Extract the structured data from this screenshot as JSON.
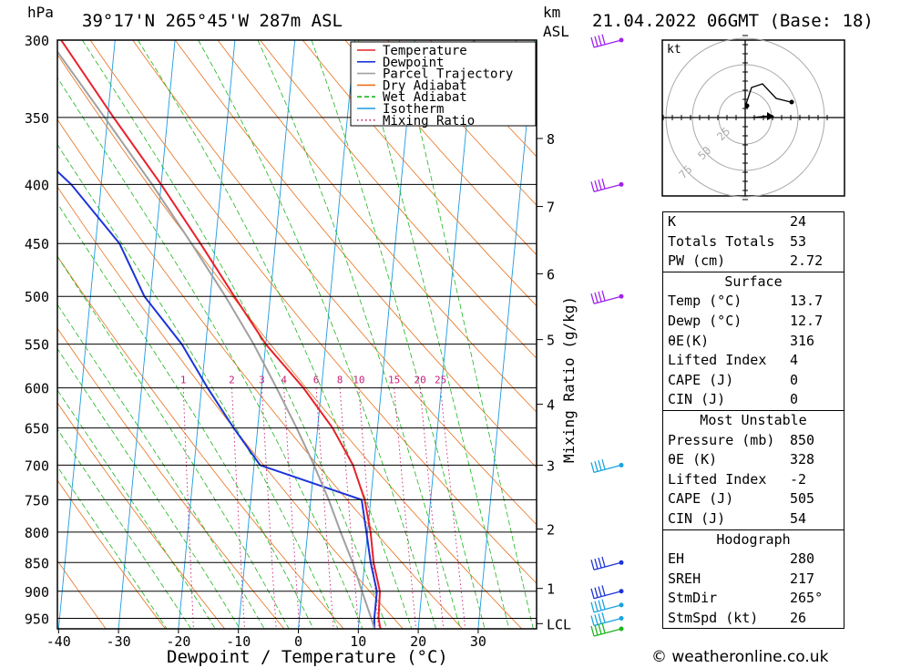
{
  "header": {
    "hpa_label": "hPa",
    "location": "39°17'N  265°45'W  287m  ASL",
    "km_label": "km",
    "asl_label": "ASL",
    "datetime": "21.04.2022  06GMT  (Base: 18)"
  },
  "legend": [
    {
      "label": "Temperature",
      "color": "#e8212b",
      "style": "solid"
    },
    {
      "label": "Dewpoint",
      "color": "#1d35d8",
      "style": "solid"
    },
    {
      "label": "Parcel Trajectory",
      "color": "#a0a0a0",
      "style": "solid"
    },
    {
      "label": "Dry Adiabat",
      "color": "#e8701a",
      "style": "solid"
    },
    {
      "label": "Wet Adiabat",
      "color": "#1db51d",
      "style": "dashed"
    },
    {
      "label": "Isotherm",
      "color": "#1d9be0",
      "style": "solid"
    },
    {
      "label": "Mixing Ratio",
      "color": "#c81e78",
      "style": "dotted"
    }
  ],
  "chart_data": {
    "type": "line",
    "xlabel": "Dewpoint / Temperature (°C)",
    "ylabel": "hPa",
    "right_axis_label": "km ASL",
    "mixing_ratio_axis_label": "Mixing Ratio (g/kg)",
    "pressure_ticks": [
      300,
      350,
      400,
      450,
      500,
      550,
      600,
      650,
      700,
      750,
      800,
      850,
      900,
      950
    ],
    "temperature_ticks": [
      -40,
      -30,
      -20,
      -10,
      0,
      10,
      20,
      30
    ],
    "km_ticks": [
      {
        "label": "8",
        "p": 365
      },
      {
        "label": "7",
        "p": 418
      },
      {
        "label": "6",
        "p": 478
      },
      {
        "label": "5",
        "p": 545
      },
      {
        "label": "4",
        "p": 620
      },
      {
        "label": "3",
        "p": 700
      },
      {
        "label": "2",
        "p": 795
      },
      {
        "label": "1",
        "p": 895
      },
      {
        "label": "LCL",
        "p": 960
      }
    ],
    "mixing_ratio_labels": [
      "1",
      "2",
      "3",
      "4",
      "6",
      "8",
      "10",
      "15",
      "20",
      "25"
    ],
    "mixing_ratio_values": [
      1,
      2,
      3,
      4,
      6,
      8,
      10,
      15,
      20,
      25
    ],
    "series": [
      {
        "name": "Temperature",
        "color": "#e8212b",
        "points": [
          [
            970,
            13.7
          ],
          [
            950,
            13.2
          ],
          [
            900,
            13
          ],
          [
            850,
            11.5
          ],
          [
            800,
            10.5
          ],
          [
            750,
            9
          ],
          [
            700,
            6.5
          ],
          [
            650,
            2.5
          ],
          [
            600,
            -3
          ],
          [
            550,
            -10
          ],
          [
            500,
            -16
          ],
          [
            450,
            -22.5
          ],
          [
            400,
            -30
          ],
          [
            350,
            -39
          ],
          [
            300,
            -49
          ]
        ]
      },
      {
        "name": "Dewpoint",
        "color": "#1d35d8",
        "points": [
          [
            970,
            12.7
          ],
          [
            950,
            12.5
          ],
          [
            900,
            12.5
          ],
          [
            850,
            11
          ],
          [
            800,
            9.8
          ],
          [
            750,
            8.5
          ],
          [
            700,
            -9
          ],
          [
            650,
            -14
          ],
          [
            600,
            -19
          ],
          [
            550,
            -24
          ],
          [
            500,
            -31
          ],
          [
            450,
            -36
          ],
          [
            400,
            -45
          ],
          [
            350,
            -58
          ],
          [
            300,
            -67
          ]
        ]
      },
      {
        "name": "Parcel Trajectory",
        "color": "#a0a0a0",
        "points": [
          [
            970,
            12.7
          ],
          [
            950,
            12
          ],
          [
            900,
            10
          ],
          [
            850,
            8
          ],
          [
            800,
            5.5
          ],
          [
            750,
            3
          ],
          [
            700,
            0
          ],
          [
            650,
            -3.5
          ],
          [
            600,
            -7.5
          ],
          [
            550,
            -12
          ],
          [
            500,
            -17.5
          ],
          [
            450,
            -24
          ],
          [
            400,
            -31.5
          ],
          [
            350,
            -40.5
          ],
          [
            300,
            -51
          ]
        ]
      }
    ],
    "wind_barbs": [
      {
        "p": 300,
        "color": "#a020f0"
      },
      {
        "p": 400,
        "color": "#a020f0"
      },
      {
        "p": 500,
        "color": "#a020f0"
      },
      {
        "p": 700,
        "color": "#19a3e0"
      },
      {
        "p": 850,
        "color": "#1d35d8"
      },
      {
        "p": 900,
        "color": "#1d35d8"
      },
      {
        "p": 925,
        "color": "#19a3e0"
      },
      {
        "p": 950,
        "color": "#19a3e0"
      },
      {
        "p": 970,
        "color": "#1db51d"
      }
    ]
  },
  "hodograph": {
    "unit_label": "kt",
    "ring_labels": [
      "25",
      "50",
      "75"
    ]
  },
  "stats": {
    "indices": [
      {
        "label": "K",
        "value": "24"
      },
      {
        "label": "Totals Totals",
        "value": "53"
      },
      {
        "label": "PW (cm)",
        "value": "2.72"
      }
    ],
    "surface": {
      "title": "Surface",
      "rows": [
        {
          "label": "Temp (°C)",
          "value": "13.7"
        },
        {
          "label": "Dewp (°C)",
          "value": "12.7"
        },
        {
          "label": "θE(K)",
          "value": "316"
        },
        {
          "label": "Lifted Index",
          "value": "4"
        },
        {
          "label": "CAPE (J)",
          "value": "0"
        },
        {
          "label": "CIN (J)",
          "value": "0"
        }
      ]
    },
    "most_unstable": {
      "title": "Most Unstable",
      "rows": [
        {
          "label": "Pressure (mb)",
          "value": "850"
        },
        {
          "label": "θE (K)",
          "value": "328"
        },
        {
          "label": "Lifted Index",
          "value": "-2"
        },
        {
          "label": "CAPE (J)",
          "value": "505"
        },
        {
          "label": "CIN (J)",
          "value": "54"
        }
      ]
    },
    "hodograph_box": {
      "title": "Hodograph",
      "rows": [
        {
          "label": "EH",
          "value": "280"
        },
        {
          "label": "SREH",
          "value": "217"
        },
        {
          "label": "StmDir",
          "value": "265°"
        },
        {
          "label": "StmSpd (kt)",
          "value": "26"
        }
      ]
    }
  },
  "footer": {
    "copyright": "© weatheronline.co.uk"
  }
}
